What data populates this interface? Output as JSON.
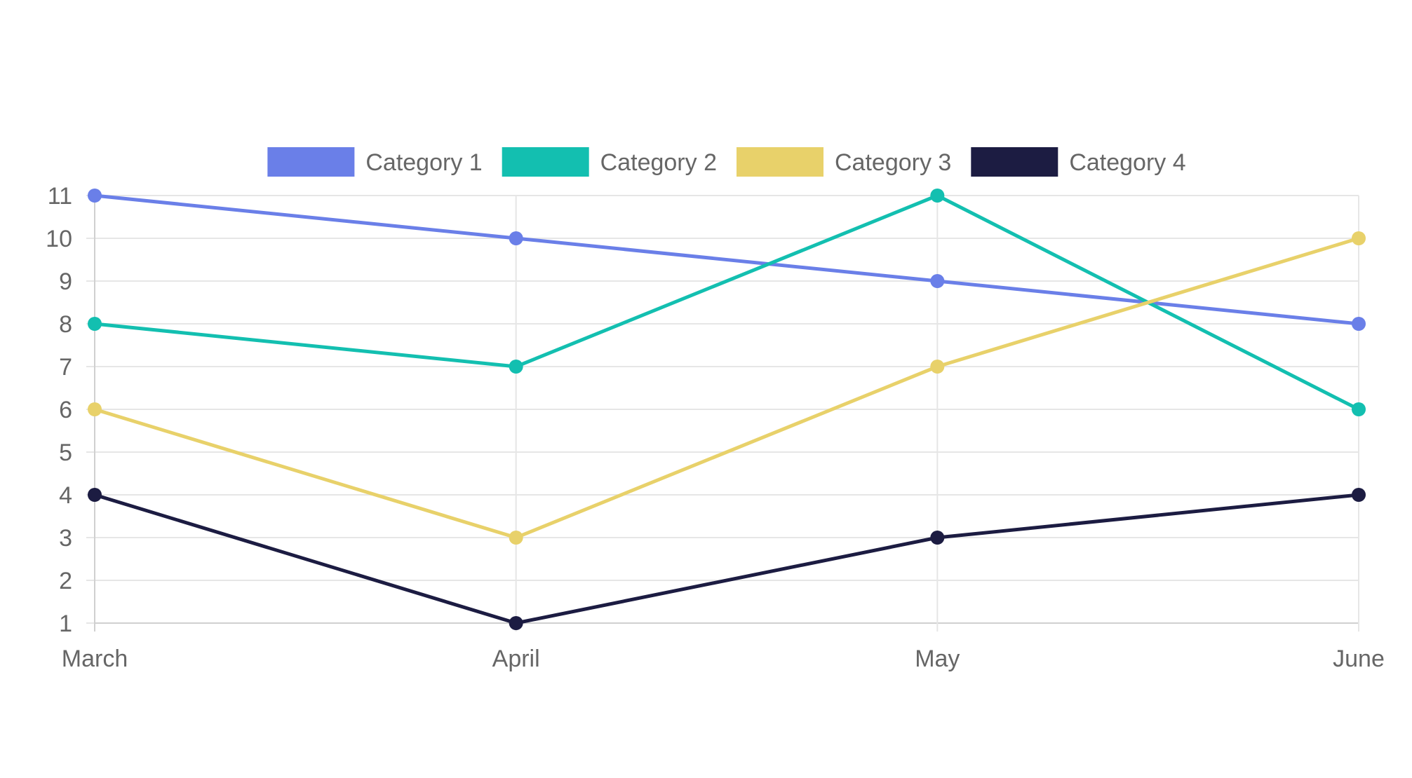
{
  "chart_data": {
    "type": "line",
    "title": "",
    "xlabel": "",
    "ylabel": "",
    "categories": [
      "March",
      "April",
      "May",
      "June"
    ],
    "ylim": [
      1,
      11
    ],
    "yticks": [
      1,
      2,
      3,
      4,
      5,
      6,
      7,
      8,
      9,
      10,
      11
    ],
    "grid": true,
    "legend_position": "top",
    "series": [
      {
        "name": "Category 1",
        "color": "#6a7fe8",
        "values": [
          11,
          10,
          9,
          8
        ]
      },
      {
        "name": "Category 2",
        "color": "#13bfb0",
        "values": [
          8,
          7,
          11,
          6
        ]
      },
      {
        "name": "Category 3",
        "color": "#e8d16a",
        "values": [
          6,
          3,
          7,
          10
        ]
      },
      {
        "name": "Category 4",
        "color": "#1c1c42",
        "values": [
          4,
          1,
          3,
          4
        ]
      }
    ]
  }
}
